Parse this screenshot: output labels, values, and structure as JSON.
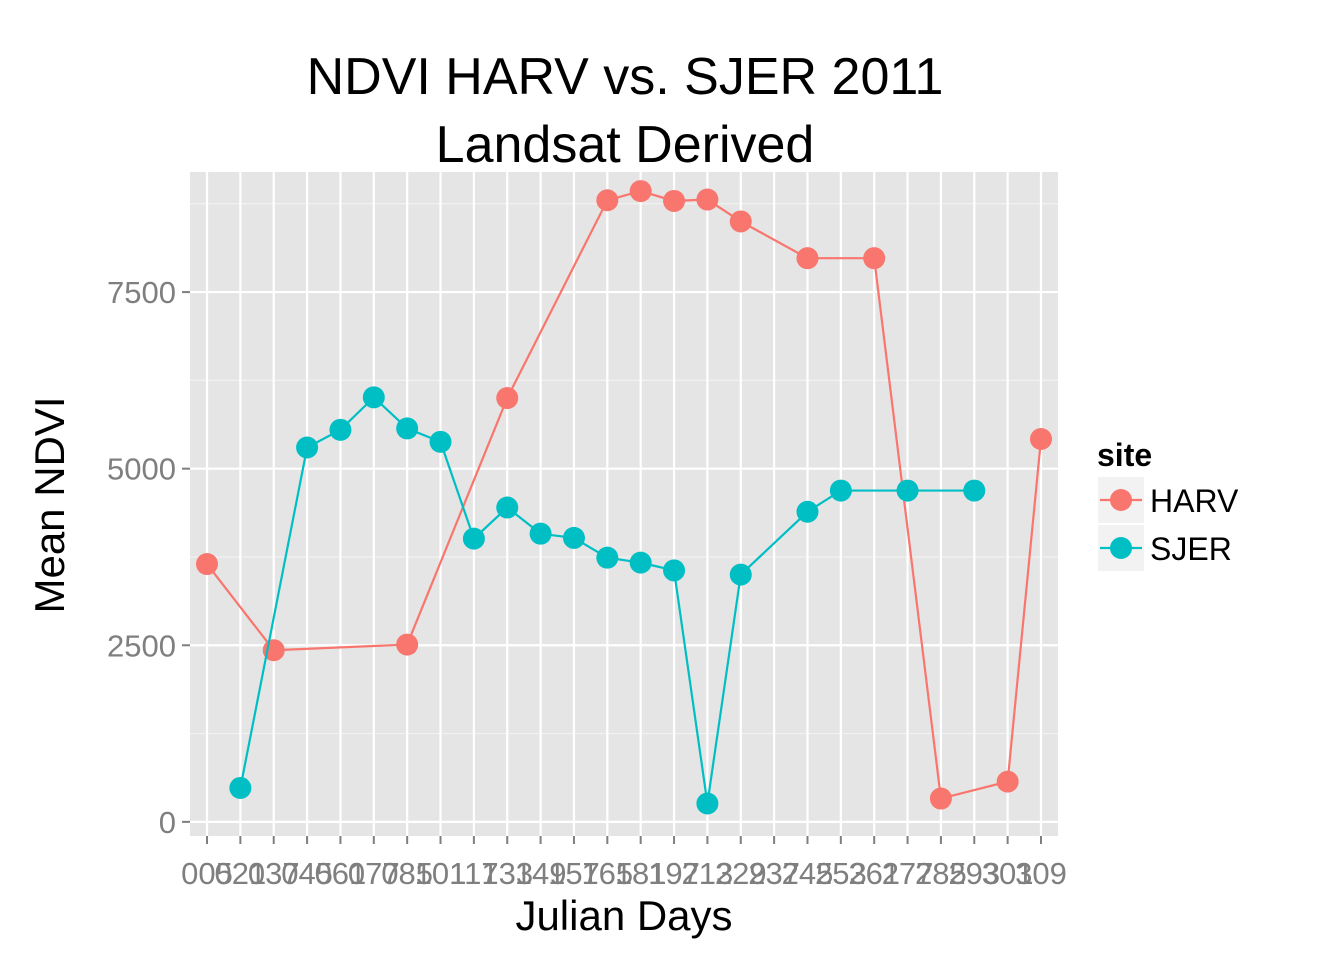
{
  "chart_data": {
    "type": "line",
    "title_lines": [
      "NDVI HARV vs. SJER 2011",
      "Landsat Derived"
    ],
    "xlabel": "Julian Days",
    "ylabel": "Mean NDVI",
    "ylim": [
      -200,
      9200
    ],
    "yticks": [
      0,
      2500,
      5000,
      7500
    ],
    "grid": true,
    "legend": {
      "title": "site",
      "position": "right"
    },
    "categories": [
      "005",
      "021",
      "037",
      "045",
      "061",
      "077",
      "085",
      "101",
      "117",
      "133",
      "149",
      "157",
      "165",
      "181",
      "197",
      "213",
      "229",
      "237",
      "245",
      "253",
      "261",
      "277",
      "285",
      "293",
      "301",
      "309"
    ],
    "series": [
      {
        "name": "HARV",
        "color": "#F8766D",
        "x": [
          "005",
          "037",
          "085",
          "133",
          "165",
          "181",
          "197",
          "213",
          "229",
          "245",
          "261",
          "285",
          "301",
          "309"
        ],
        "values": [
          3650,
          2430,
          2510,
          6000,
          8800,
          8930,
          8790,
          8810,
          8500,
          7980,
          7980,
          330,
          570,
          5420
        ]
      },
      {
        "name": "SJER",
        "color": "#00BFC4",
        "x": [
          "021",
          "045",
          "061",
          "077",
          "085",
          "101",
          "117",
          "133",
          "149",
          "157",
          "165",
          "181",
          "197",
          "213",
          "229",
          "245",
          "253",
          "277",
          "293"
        ],
        "values": [
          480,
          5300,
          5550,
          6010,
          5570,
          5380,
          4010,
          4450,
          4080,
          4020,
          3740,
          3670,
          3560,
          260,
          3500,
          4390,
          4690,
          4690,
          4690
        ]
      }
    ]
  }
}
